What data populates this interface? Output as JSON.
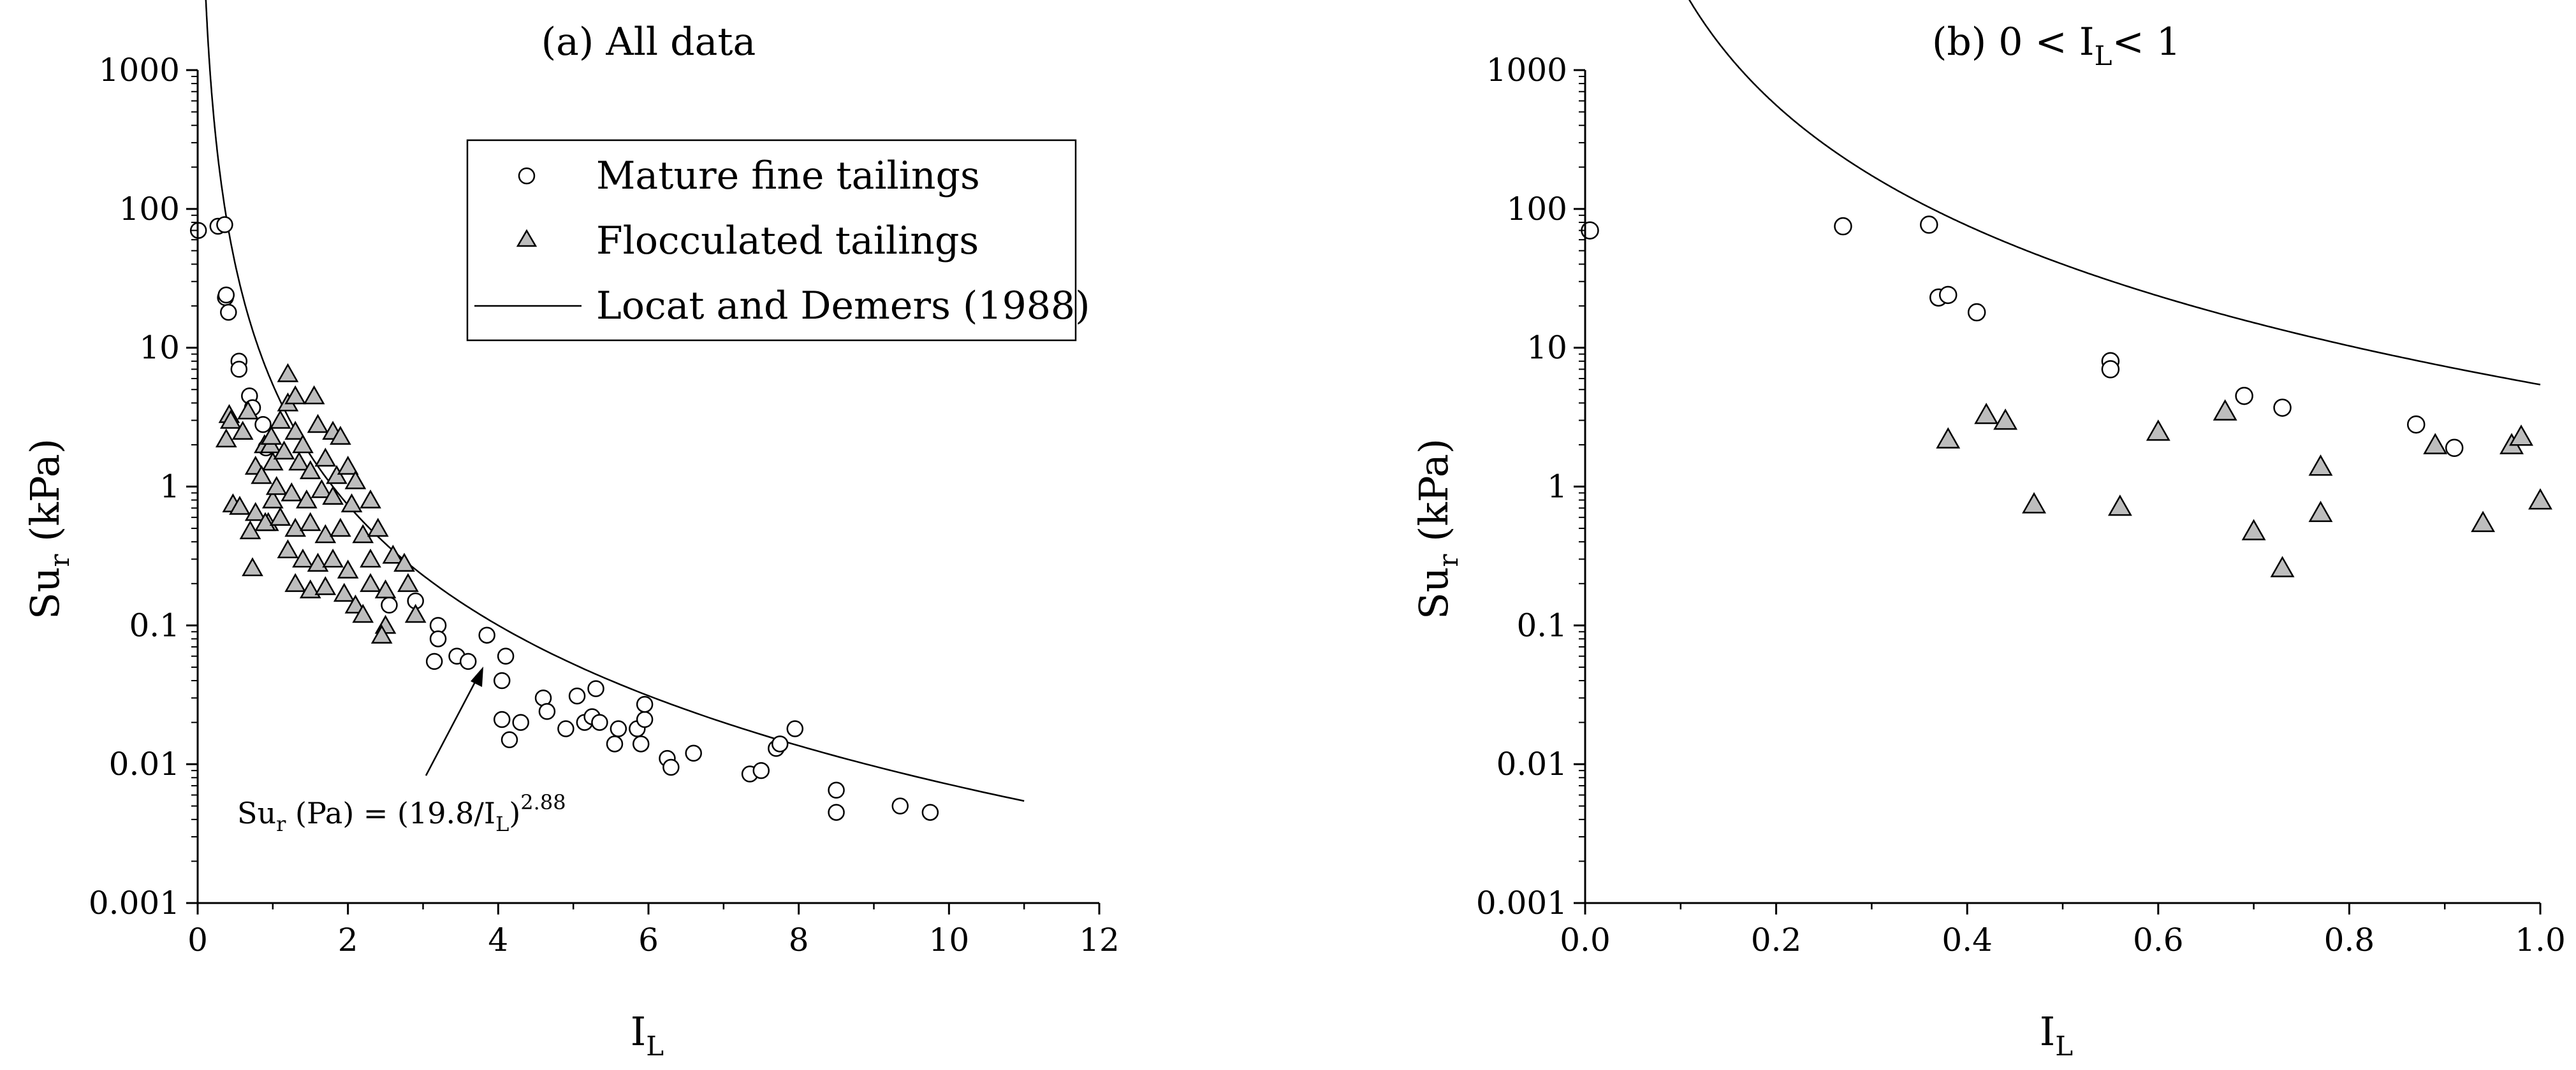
{
  "chart_data": [
    {
      "type": "scatter",
      "title_main": "(a) All data",
      "xlabel_main": "I",
      "xlabel_sub": "L",
      "ylabel_main": "Su",
      "ylabel_sub": "r",
      "ylabel_unit": " (kPa)",
      "xlim": [
        0,
        12
      ],
      "ylim": [
        0.001,
        1000
      ],
      "yscale": "log",
      "xticks": [
        "0",
        "2",
        "4",
        "6",
        "8",
        "10",
        "12"
      ],
      "yticks": [
        "0.001",
        "0.01",
        "0.1",
        "1",
        "10",
        "100",
        "1000"
      ],
      "legend": {
        "placement": "top-right",
        "items": [
          "Mature fine tailings",
          "Flocculated tailings",
          "Locat and Demers (1988)"
        ]
      },
      "annotation": {
        "main": "Su",
        "sub1": "r",
        "mid": " (Pa) = (19.8/I",
        "sub2": "L",
        "close": ")",
        "sup": "2.88"
      },
      "series": [
        {
          "name": "Mature fine tailings",
          "marker": "circle",
          "points": [
            [
              0.01,
              70
            ],
            [
              0.27,
              75
            ],
            [
              0.36,
              77
            ],
            [
              0.37,
              23
            ],
            [
              0.38,
              24
            ],
            [
              0.41,
              18
            ],
            [
              0.55,
              8
            ],
            [
              0.55,
              7
            ],
            [
              0.69,
              4.5
            ],
            [
              0.73,
              3.7
            ],
            [
              0.87,
              2.8
            ],
            [
              0.91,
              1.9
            ],
            [
              2.55,
              0.14
            ],
            [
              2.9,
              0.15
            ],
            [
              3.2,
              0.1
            ],
            [
              3.2,
              0.08
            ],
            [
              3.15,
              0.055
            ],
            [
              3.45,
              0.06
            ],
            [
              3.6,
              0.055
            ],
            [
              3.85,
              0.085
            ],
            [
              4.1,
              0.06
            ],
            [
              4.05,
              0.04
            ],
            [
              4.05,
              0.021
            ],
            [
              4.15,
              0.015
            ],
            [
              4.3,
              0.02
            ],
            [
              4.6,
              0.03
            ],
            [
              4.65,
              0.024
            ],
            [
              4.9,
              0.018
            ],
            [
              5.05,
              0.031
            ],
            [
              5.15,
              0.02
            ],
            [
              5.25,
              0.022
            ],
            [
              5.3,
              0.035
            ],
            [
              5.35,
              0.02
            ],
            [
              5.55,
              0.014
            ],
            [
              5.6,
              0.018
            ],
            [
              5.85,
              0.018
            ],
            [
              5.9,
              0.014
            ],
            [
              5.95,
              0.021
            ],
            [
              5.95,
              0.027
            ],
            [
              6.25,
              0.011
            ],
            [
              6.3,
              0.0095
            ],
            [
              6.6,
              0.012
            ],
            [
              7.35,
              0.0085
            ],
            [
              7.5,
              0.009
            ],
            [
              7.7,
              0.013
            ],
            [
              7.75,
              0.014
            ],
            [
              7.95,
              0.018
            ],
            [
              8.5,
              0.0065
            ],
            [
              8.5,
              0.0045
            ],
            [
              9.35,
              0.005
            ],
            [
              9.75,
              0.0045
            ]
          ]
        },
        {
          "name": "Flocculated tailings",
          "marker": "triangle",
          "points": [
            [
              0.38,
              2.2
            ],
            [
              0.42,
              3.3
            ],
            [
              0.44,
              3
            ],
            [
              0.47,
              0.75
            ],
            [
              0.56,
              0.72
            ],
            [
              0.6,
              2.5
            ],
            [
              0.67,
              3.5
            ],
            [
              0.7,
              0.48
            ],
            [
              0.73,
              0.26
            ],
            [
              0.77,
              1.4
            ],
            [
              0.77,
              0.65
            ],
            [
              0.89,
              2
            ],
            [
              0.94,
              0.55
            ],
            [
              0.97,
              2
            ],
            [
              0.98,
              2.3
            ],
            [
              1.0,
              0.8
            ],
            [
              1.2,
              6.5
            ],
            [
              1.2,
              4
            ],
            [
              1.3,
              4.5
            ],
            [
              1.55,
              4.5
            ],
            [
              1.1,
              3
            ],
            [
              1.3,
              2.5
            ],
            [
              1.4,
              2
            ],
            [
              1.6,
              2.8
            ],
            [
              1.8,
              2.5
            ],
            [
              1.9,
              2.3
            ],
            [
              1.0,
              1.5
            ],
            [
              1.15,
              1.8
            ],
            [
              1.35,
              1.5
            ],
            [
              1.5,
              1.3
            ],
            [
              1.7,
              1.6
            ],
            [
              1.85,
              1.2
            ],
            [
              2.0,
              1.4
            ],
            [
              2.1,
              1.1
            ],
            [
              0.85,
              1.2
            ],
            [
              1.05,
              1.0
            ],
            [
              1.25,
              0.9
            ],
            [
              1.45,
              0.8
            ],
            [
              1.65,
              0.95
            ],
            [
              1.8,
              0.85
            ],
            [
              2.05,
              0.75
            ],
            [
              2.3,
              0.8
            ],
            [
              0.9,
              0.55
            ],
            [
              1.1,
              0.6
            ],
            [
              1.3,
              0.5
            ],
            [
              1.5,
              0.55
            ],
            [
              1.7,
              0.45
            ],
            [
              1.9,
              0.5
            ],
            [
              2.2,
              0.45
            ],
            [
              2.4,
              0.5
            ],
            [
              1.2,
              0.35
            ],
            [
              1.4,
              0.3
            ],
            [
              1.6,
              0.28
            ],
            [
              1.8,
              0.3
            ],
            [
              2.0,
              0.25
            ],
            [
              2.3,
              0.3
            ],
            [
              2.6,
              0.32
            ],
            [
              2.75,
              0.28
            ],
            [
              1.3,
              0.2
            ],
            [
              1.5,
              0.18
            ],
            [
              1.7,
              0.19
            ],
            [
              1.95,
              0.17
            ],
            [
              2.1,
              0.14
            ],
            [
              2.3,
              0.2
            ],
            [
              2.5,
              0.18
            ],
            [
              2.8,
              0.2
            ],
            [
              2.9,
              0.12
            ],
            [
              2.5,
              0.1
            ],
            [
              2.45,
              0.085
            ],
            [
              2.2,
              0.12
            ]
          ]
        },
        {
          "name": "Locat and Demers (1988)",
          "marker": "line",
          "equation_coefficient": 19.8,
          "equation_exponent": 2.88,
          "x_range": [
            0.07,
            11
          ]
        }
      ]
    },
    {
      "type": "scatter",
      "title_pre": "(b) 0 < I",
      "title_sub": "L",
      "title_post": "< 1",
      "xlabel_main": "I",
      "xlabel_sub": "L",
      "ylabel_main": "Su",
      "ylabel_sub": "r",
      "ylabel_unit": " (kPa)",
      "xlim": [
        0,
        1
      ],
      "ylim": [
        0.001,
        1000
      ],
      "yscale": "log",
      "xticks": [
        "0.0",
        "0.2",
        "0.4",
        "0.6",
        "0.8",
        "1.0"
      ],
      "yticks": [
        "0.001",
        "0.01",
        "0.1",
        "1",
        "10",
        "100",
        "1000"
      ],
      "series": [
        {
          "name": "Mature fine tailings",
          "marker": "circle",
          "points": [
            [
              0.005,
              70
            ],
            [
              0.27,
              75
            ],
            [
              0.36,
              77
            ],
            [
              0.37,
              23
            ],
            [
              0.38,
              24
            ],
            [
              0.41,
              18
            ],
            [
              0.55,
              8
            ],
            [
              0.55,
              7
            ],
            [
              0.69,
              4.5
            ],
            [
              0.73,
              3.7
            ],
            [
              0.87,
              2.8
            ],
            [
              0.91,
              1.9
            ]
          ]
        },
        {
          "name": "Flocculated tailings",
          "marker": "triangle",
          "points": [
            [
              0.38,
              2.2
            ],
            [
              0.42,
              3.3
            ],
            [
              0.44,
              3
            ],
            [
              0.47,
              0.75
            ],
            [
              0.56,
              0.72
            ],
            [
              0.6,
              2.5
            ],
            [
              0.67,
              3.5
            ],
            [
              0.7,
              0.48
            ],
            [
              0.73,
              0.26
            ],
            [
              0.77,
              1.4
            ],
            [
              0.77,
              0.65
            ],
            [
              0.89,
              2
            ],
            [
              0.94,
              0.55
            ],
            [
              0.97,
              2
            ],
            [
              0.98,
              2.3
            ],
            [
              1.0,
              0.8
            ]
          ]
        },
        {
          "name": "Locat and Demers (1988)",
          "marker": "line",
          "equation_coefficient": 19.8,
          "equation_exponent": 2.88,
          "x_range": [
            0.075,
            1
          ]
        }
      ]
    }
  ]
}
